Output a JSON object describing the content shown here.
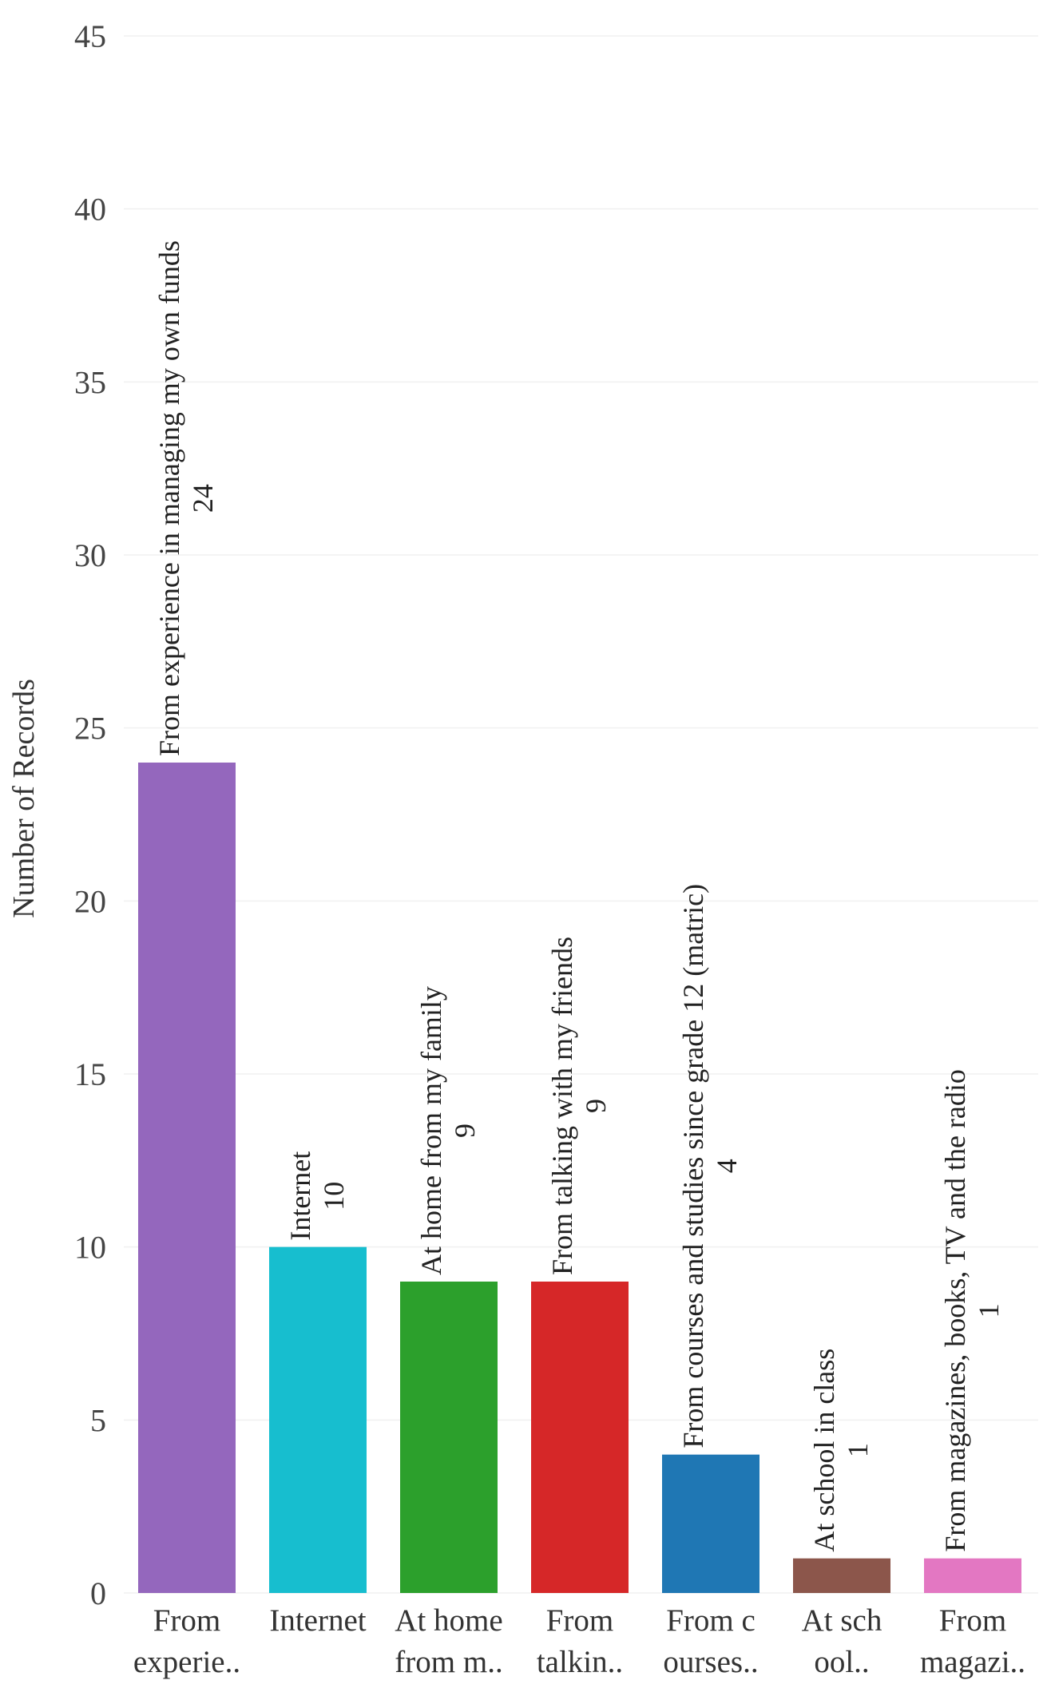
{
  "chart_data": {
    "type": "bar",
    "title": "",
    "xlabel": "",
    "ylabel": "Number of Records",
    "ylim": [
      0,
      45
    ],
    "yticks": [
      0,
      5,
      10,
      15,
      20,
      25,
      30,
      35,
      40,
      45
    ],
    "grid": true,
    "legend": "none",
    "categories": [
      "From experience in managing my own funds",
      "Internet",
      "At home from my family",
      "From talking with my friends",
      "From courses and studies since grade 12 (matric)",
      "At school in class",
      "From magazines, books, TV and the radio"
    ],
    "category_tick_labels": [
      [
        "From",
        "experie.."
      ],
      [
        "Internet",
        ""
      ],
      [
        "At home",
        "from m.."
      ],
      [
        "From",
        "talkin.."
      ],
      [
        "From c",
        "ourses.."
      ],
      [
        "At sch",
        "ool.."
      ],
      [
        "From",
        "magazi.."
      ]
    ],
    "values": [
      24,
      10,
      9,
      9,
      4,
      1,
      1
    ],
    "colors": [
      "#9467bd",
      "#17becf",
      "#2ca02c",
      "#d62728",
      "#1f77b4",
      "#8c564b",
      "#e377c2"
    ]
  }
}
